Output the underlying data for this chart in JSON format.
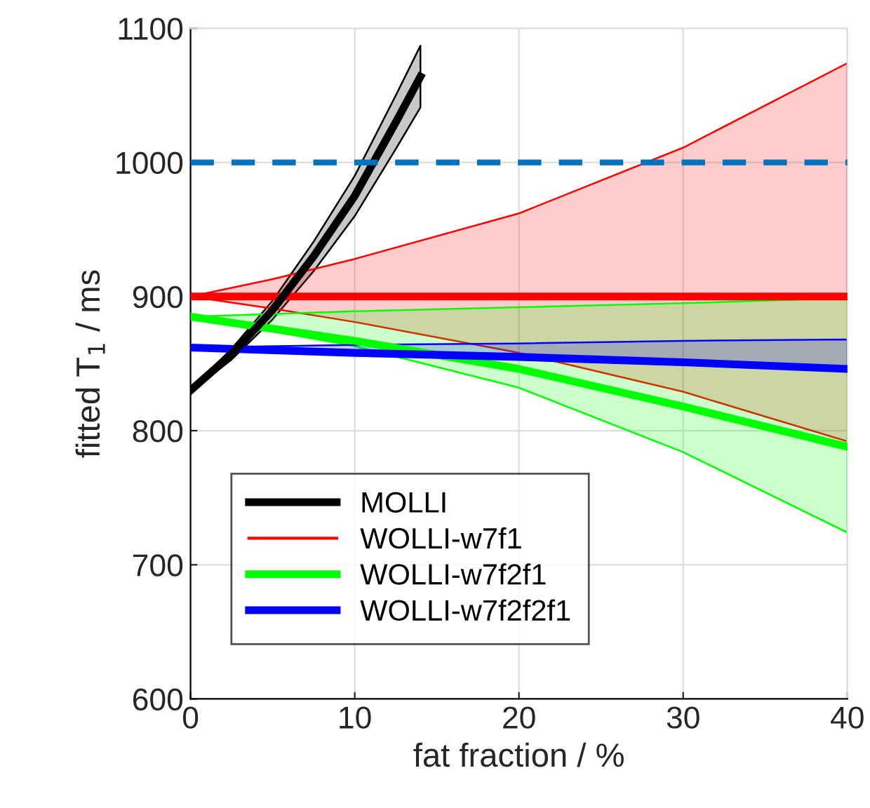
{
  "chart_data": {
    "type": "line",
    "xlabel": "fat fraction / %",
    "ylabel": "fitted T$_{1}$ / ms",
    "xlim": [
      0,
      40
    ],
    "ylim": [
      600,
      1100
    ],
    "xticks": [
      0,
      10,
      20,
      30,
      40
    ],
    "yticks": [
      600,
      700,
      800,
      900,
      1000,
      1100
    ],
    "grid": true,
    "legend": "bottom left",
    "line_style": "solid",
    "ref_lines": [
      {
        "axis": "y",
        "value": 1000,
        "color": "#0072bd",
        "line_style": "dashed"
      }
    ],
    "series": [
      {
        "name": "MOLLI",
        "color": "#000000",
        "x": [
          0,
          2.5,
          5,
          7.5,
          10,
          12.5,
          14
        ],
        "values": [
          830,
          857,
          890,
          930,
          975,
          1030,
          1064
        ],
        "lower": [
          829,
          853,
          883,
          919,
          960,
          1010,
          1041
        ],
        "upper": [
          831,
          861,
          897,
          941,
          990,
          1050,
          1087
        ]
      },
      {
        "name": "WOLLI-w7f1",
        "color": "#ff0000",
        "x": [
          0,
          5,
          10,
          20,
          30,
          40
        ],
        "values": [
          900,
          900,
          900,
          900,
          900,
          900
        ],
        "lower": [
          900,
          891,
          881,
          858,
          829,
          792
        ],
        "upper": [
          900,
          913,
          928,
          962,
          1011,
          1074
        ]
      },
      {
        "name": "WOLLI-w7f2f1",
        "color": "#00ff00",
        "x": [
          0,
          10,
          20,
          30,
          40
        ],
        "values": [
          885,
          867,
          846,
          818,
          788
        ],
        "lower": [
          885,
          863,
          832,
          784,
          724
        ],
        "upper": [
          885,
          889,
          892,
          895,
          899
        ]
      },
      {
        "name": "WOLLI-w7f2f2f1",
        "color": "#0000ff",
        "x": [
          0,
          10,
          20,
          30,
          40
        ],
        "values": [
          862,
          858,
          855,
          851,
          846
        ],
        "lower": [
          862,
          857,
          853,
          849,
          845
        ],
        "upper": [
          862,
          864,
          865,
          867,
          868
        ]
      }
    ]
  }
}
